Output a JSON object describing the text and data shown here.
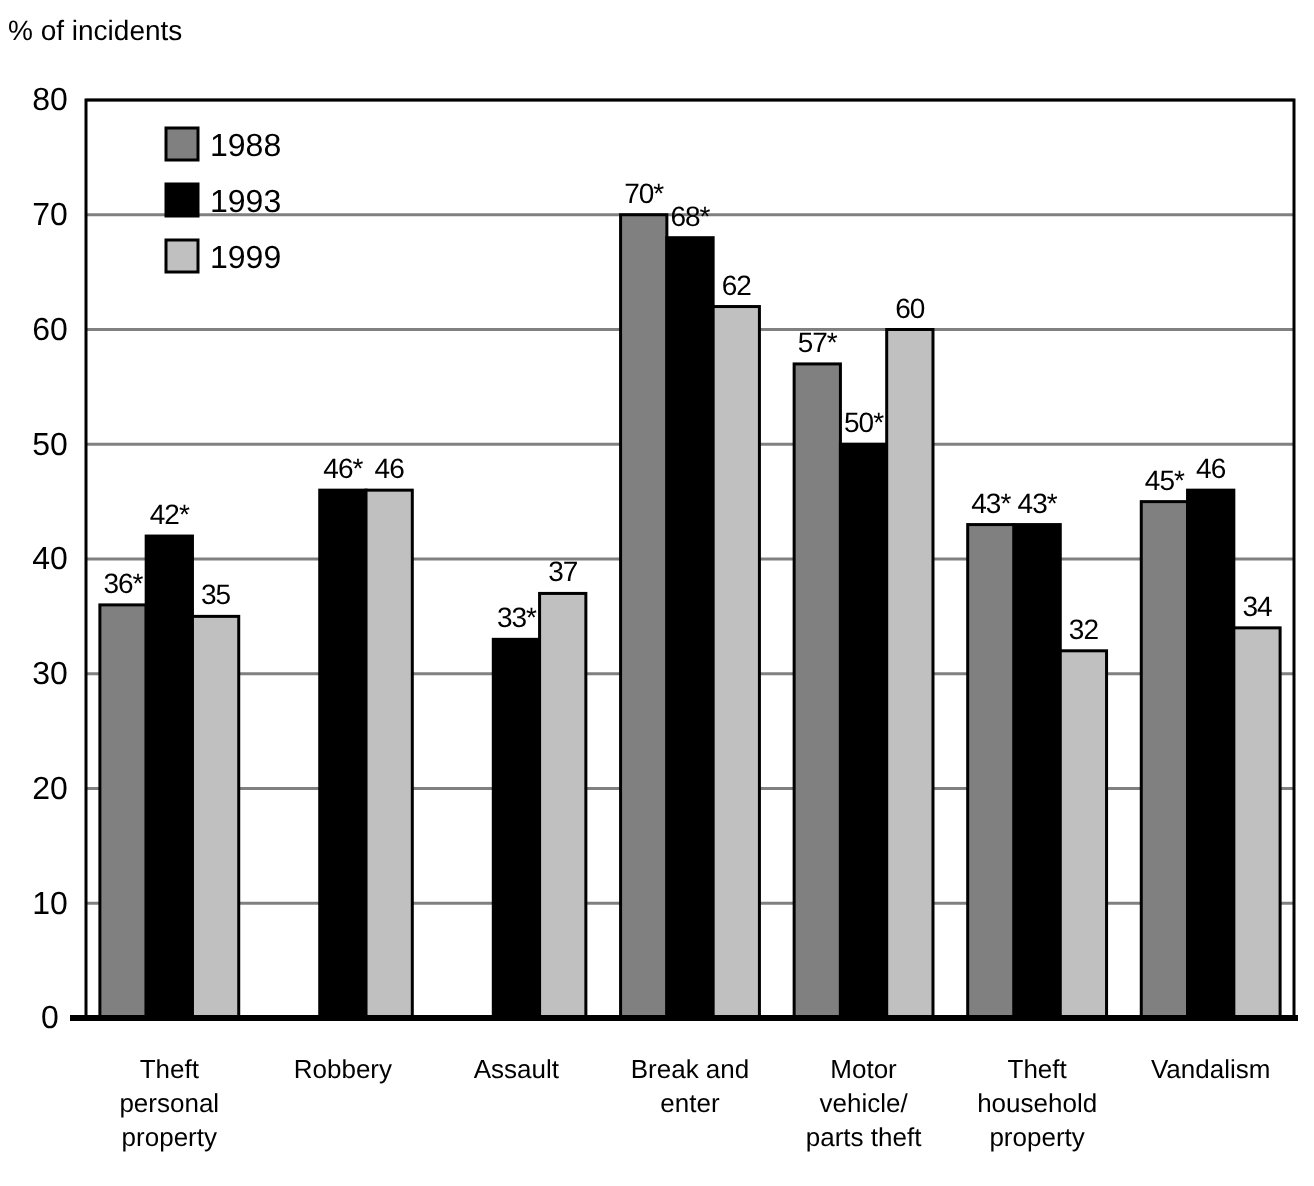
{
  "chart_data": {
    "type": "bar",
    "ylabel": "% of incidents",
    "categories": [
      "Theft personal property",
      "Robbery",
      "Assault",
      "Break and enter",
      "Motor vehicle/ parts theft",
      "Theft household property",
      "Vandalism"
    ],
    "series": [
      {
        "name": "1988",
        "color": "#808080",
        "values": [
          36,
          null,
          null,
          70,
          57,
          43,
          45
        ],
        "value_labels": [
          "36*",
          null,
          null,
          "70*",
          "57*",
          "43*",
          "45*"
        ]
      },
      {
        "name": "1993",
        "color": "#000000",
        "values": [
          42,
          46,
          33,
          68,
          50,
          43,
          46
        ],
        "value_labels": [
          "42*",
          "46*",
          "33*",
          "68*",
          "50*",
          "43*",
          "46"
        ]
      },
      {
        "name": "1999",
        "color": "#c0c0c0",
        "values": [
          35,
          46,
          37,
          62,
          60,
          32,
          34
        ],
        "value_labels": [
          "35",
          "46",
          "37",
          "62",
          "60",
          "32",
          "34"
        ]
      }
    ],
    "ylim": [
      0,
      80
    ],
    "yticks": [
      0,
      10,
      20,
      30,
      40,
      50,
      60,
      70,
      80
    ],
    "grid": "y",
    "legend": "top left"
  }
}
